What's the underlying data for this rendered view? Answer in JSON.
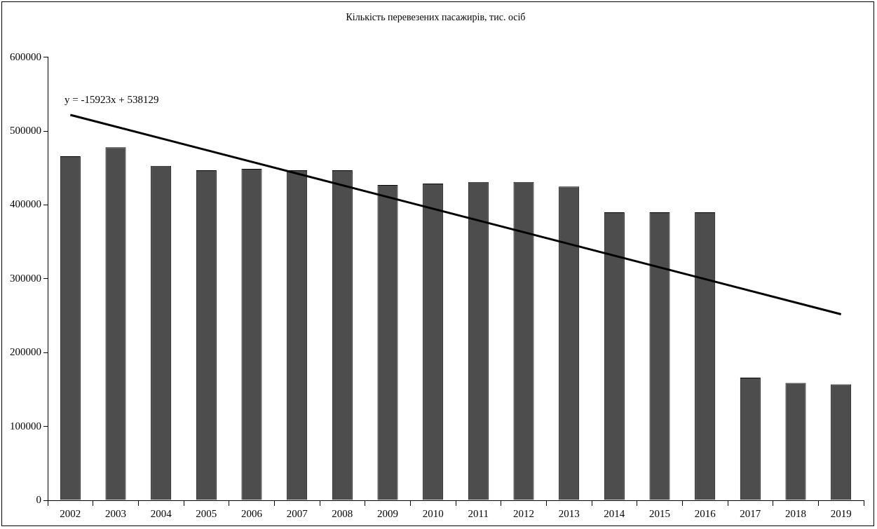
{
  "chart_data": {
    "type": "bar",
    "title": "Кількість перевезених пасажирів, тис. осіб",
    "categories": [
      "2002",
      "2003",
      "2004",
      "2005",
      "2006",
      "2007",
      "2008",
      "2009",
      "2010",
      "2011",
      "2012",
      "2013",
      "2014",
      "2015",
      "2016",
      "2017",
      "2018",
      "2019"
    ],
    "series": [
      {
        "color": "#4d4d4d",
        "values": [
          466000,
          478000,
          453000,
          447000,
          449000,
          447000,
          447000,
          427000,
          429000,
          431000,
          431000,
          425000,
          390000,
          390000,
          390000,
          166000,
          159000,
          157000
        ]
      },
      {
        "type": "line",
        "color": "#000000",
        "values": [
          522000,
          null,
          null,
          null,
          null,
          null,
          null,
          null,
          null,
          null,
          null,
          null,
          null,
          null,
          null,
          null,
          null,
          252000
        ]
      }
    ],
    "ylim": [
      0,
      600000
    ],
    "yticks": [
      0,
      100000,
      200000,
      300000,
      400000,
      500000,
      600000
    ],
    "grid": false,
    "legend": false,
    "annotations": [
      "y = -15923x + 538129"
    ]
  }
}
